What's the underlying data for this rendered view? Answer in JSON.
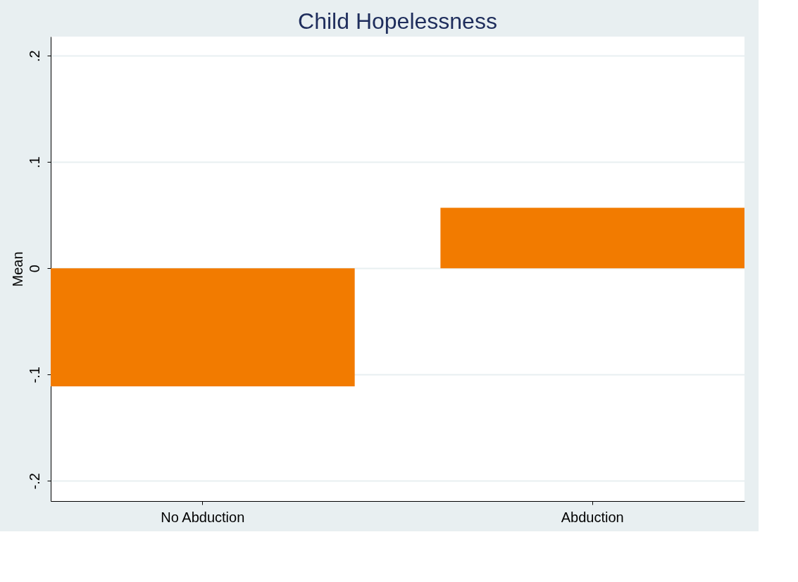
{
  "chart_data": {
    "type": "bar",
    "title": "Child Hopelessness",
    "ylabel": "Mean",
    "categories": [
      "No Abduction",
      "Abduction"
    ],
    "values": [
      -0.111,
      0.057
    ],
    "color": "#f27b00",
    "ylim": [
      -0.219,
      0.218
    ],
    "yticks": [
      {
        "value": -0.2,
        "label": "-.2"
      },
      {
        "value": -0.1,
        "label": "-.1"
      },
      {
        "value": 0,
        "label": "0"
      },
      {
        "value": 0.1,
        "label": ".1"
      },
      {
        "value": 0.2,
        "label": ".2"
      }
    ],
    "grid": "y"
  }
}
